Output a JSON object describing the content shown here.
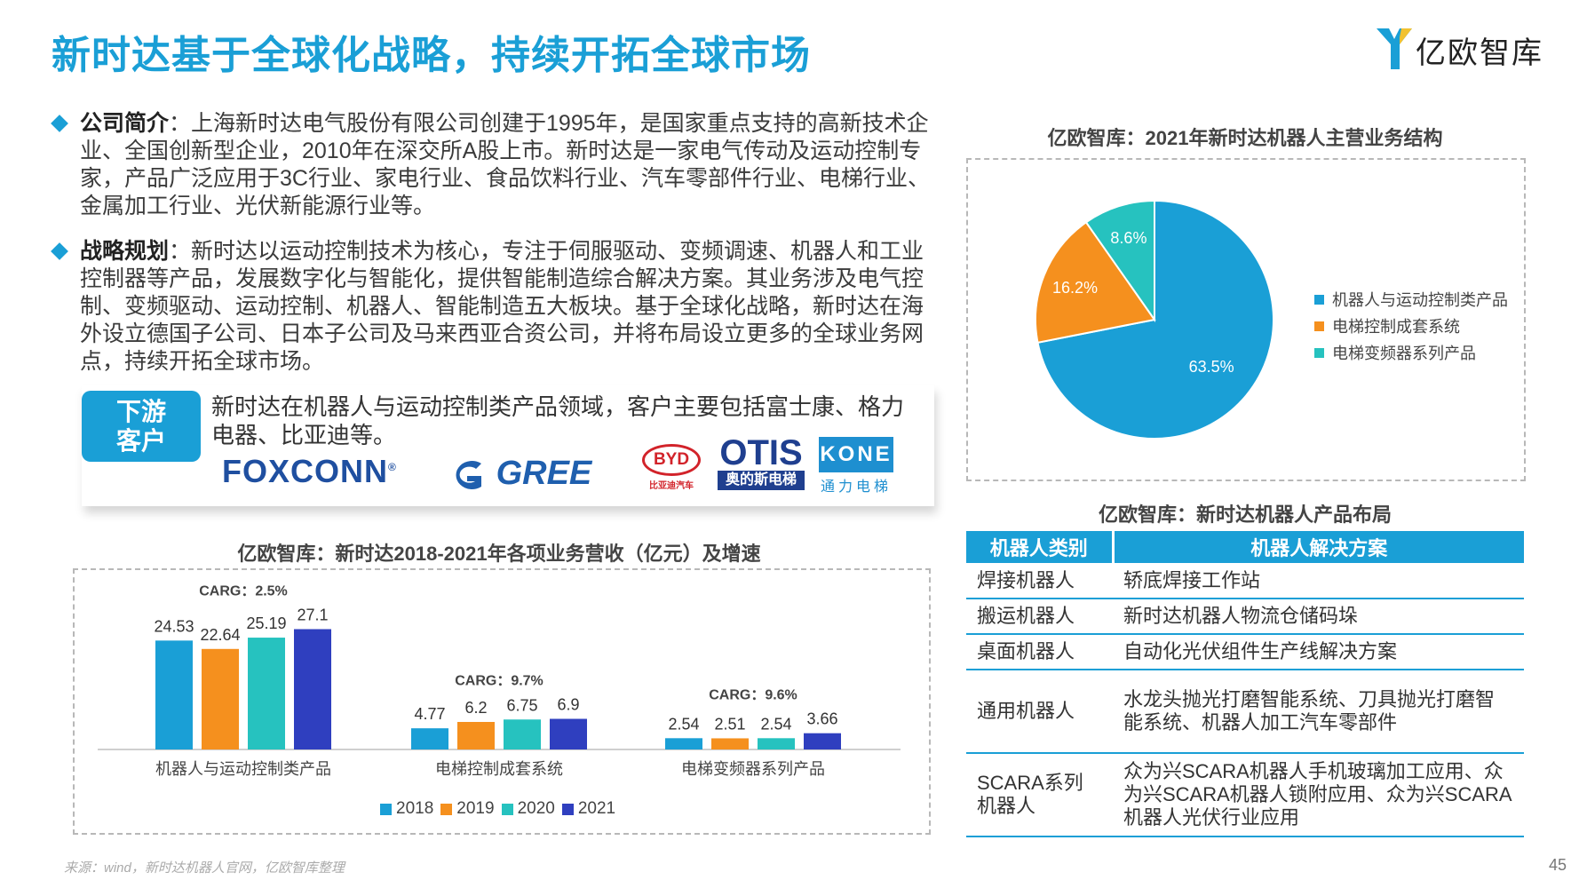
{
  "title": "新时达基于全球化战略，持续开拓全球市场",
  "logo": {
    "name": "亿欧智库"
  },
  "intro": {
    "label": "公司简介",
    "text": "：上海新时达电气股份有限公司创建于1995年，是国家重点支持的高新技术企业、全国创新型企业，2010年在深交所A股上市。新时达是一家电气传动及运动控制专家，产品广泛应用于3C行业、家电行业、食品饮料行业、汽车零部件行业、电梯行业、金属加工行业、光伏新能源行业等。"
  },
  "strategy": {
    "label": "战略规划",
    "text": "：新时达以运动控制技术为核心，专注于伺服驱动、变频调速、机器人和工业控制器等产品，发展数字化与智能化，提供智能制造综合解决方案。其业务涉及电气控制、变频驱动、运动控制、机器人、智能制造五大板块。基于全球化战略，新时达在海外设立德国子公司、日本子公司及马来西亚合资公司，并将布局设立更多的全球业务网点，持续开拓全球市场。"
  },
  "customers": {
    "tag_line1": "下游",
    "tag_line2": "客户",
    "text": "新时达在机器人与运动控制类产品领域，客户主要包括富士康、格力电器、比亚迪等。",
    "brands": {
      "foxconn": "FOXCONN",
      "foxconn_reg": "®",
      "gree": "GREE",
      "byd_logo": "BYD",
      "byd_cn": "比亚迪汽车",
      "otis": "OTIS",
      "otis_cn": "奥的斯电梯",
      "kone": "KONE",
      "kone_cn": "通力电梯"
    }
  },
  "pie": {
    "title": "亿欧智库：2021年新时达机器人主营业务结构"
  },
  "bar": {
    "title": "亿欧智库：新时达2018-2021年各项业务营收（亿元）及增速",
    "growth_labels": [
      "CARG：2.5%",
      "CARG：9.7%",
      "CARG：9.6%"
    ]
  },
  "table": {
    "title": "亿欧智库：新时达机器人产品布局",
    "headers": [
      "机器人类别",
      "机器人解决方案"
    ],
    "rows": [
      {
        "cat": "焊接机器人",
        "sol": "轿底焊接工作站"
      },
      {
        "cat": "搬运机器人",
        "sol": "新时达机器人物流仓储码垛"
      },
      {
        "cat": "桌面机器人",
        "sol": "自动化光伏组件生产线解决方案"
      },
      {
        "cat": "通用机器人",
        "sol": "水龙头抛光打磨智能系统、刀具抛光打磨智能系统、机器人加工汽车零部件"
      },
      {
        "cat": "SCARA系列机器人",
        "sol": "众为兴SCARA机器人手机玻璃加工应用、众为兴SCARA机器人锁附应用、众为兴SCARA机器人光伏行业应用"
      }
    ]
  },
  "source": "来源：wind，新时达机器人官网，亿欧智库整理",
  "page_number": "45",
  "chart_data": [
    {
      "type": "pie",
      "title": "亿欧智库：2021年新时达机器人主营业务结构",
      "slices": [
        {
          "label": "机器人与运动控制类产品",
          "value": 63.5,
          "display": "63.5%",
          "color": "#1a9fd6"
        },
        {
          "label": "电梯控制成套系统",
          "value": 16.2,
          "display": "16.2%",
          "color": "#f5901e"
        },
        {
          "label": "电梯变频器系列产品",
          "value": 8.6,
          "display": "8.6%",
          "color": "#26c2bf"
        }
      ],
      "legend_position": "right"
    },
    {
      "type": "bar",
      "title": "亿欧智库：新时达2018-2021年各项业务营收（亿元）及增速",
      "categories": [
        "机器人与运动控制类产品",
        "电梯控制成套系统",
        "电梯变频器系列产品"
      ],
      "series": [
        {
          "name": "2018",
          "color": "#1a9fd6",
          "values": [
            24.53,
            4.77,
            2.54
          ]
        },
        {
          "name": "2019",
          "color": "#f5901e",
          "values": [
            22.64,
            6.2,
            2.51
          ]
        },
        {
          "name": "2020",
          "color": "#26c2bf",
          "values": [
            25.19,
            6.75,
            2.54
          ]
        },
        {
          "name": "2021",
          "color": "#2f3fbf",
          "values": [
            27.1,
            6.9,
            3.66
          ]
        }
      ],
      "ylim": [
        0,
        30
      ],
      "grid": false,
      "legend_position": "bottom"
    }
  ]
}
